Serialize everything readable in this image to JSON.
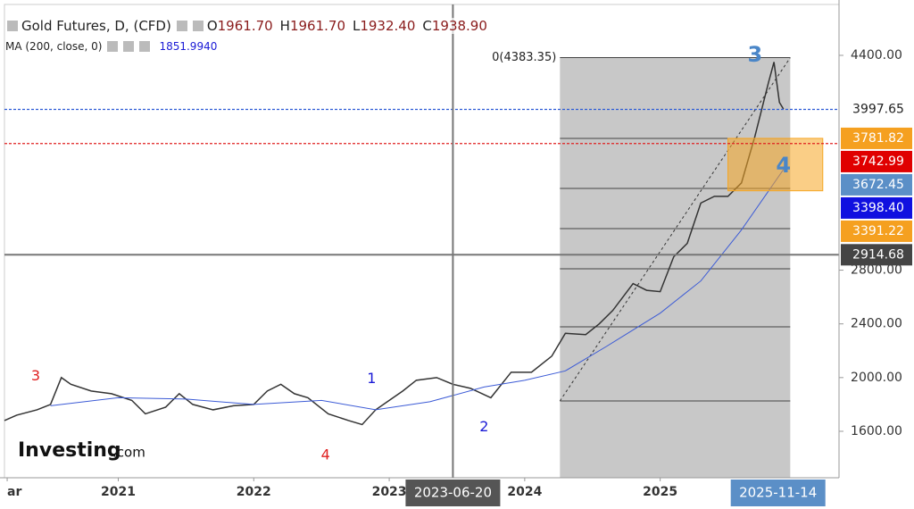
{
  "chart_data": {
    "type": "line",
    "title": "Gold Futures, D, (CFD)",
    "ohlc_names": [
      "O",
      "H",
      "L",
      "C"
    ],
    "ohlc_values": [
      1961.7,
      1961.7,
      1932.4,
      1938.9
    ],
    "ohlc_value_labels": [
      "1961.70",
      "1961.70",
      "1932.40",
      "1938.90"
    ],
    "ma_name": "MA (200, close, 0)",
    "ma_value": 1851.994,
    "ma_value_label": "1851.9940",
    "xlim": [
      2020.16,
      2026.32
    ],
    "ylim": [
      1254,
      4779
    ],
    "xticks": [
      {
        "value": 2020.18,
        "label": "ar"
      },
      2021,
      2022,
      2023,
      2024,
      2025
    ],
    "yticks": [
      {
        "value": 1600,
        "label": "1600.00"
      },
      {
        "value": 2000,
        "label": "2000.00"
      },
      {
        "value": 2400,
        "label": "2400.00"
      },
      {
        "value": 2800,
        "label": "2800.00"
      },
      {
        "value": 4400,
        "label": "4400.00"
      }
    ],
    "series": [
      {
        "color": "#333333",
        "x": [
          2020.16,
          2020.25,
          2020.4,
          2020.5,
          2020.58,
          2020.65,
          2020.8,
          2020.95,
          2021.1,
          2021.2,
          2021.35,
          2021.45,
          2021.55,
          2021.7,
          2021.85,
          2022.0,
          2022.1,
          2022.2,
          2022.3,
          2022.4,
          2022.55,
          2022.7,
          2022.8,
          2022.9,
          2023.0,
          2023.1,
          2023.2,
          2023.35,
          2023.47,
          2023.6,
          2023.75,
          2023.9,
          2024.05,
          2024.2,
          2024.3,
          2024.45,
          2024.55,
          2024.65,
          2024.8,
          2024.9,
          2025.0,
          2025.1,
          2025.2,
          2025.3,
          2025.4,
          2025.5,
          2025.6,
          2025.7,
          2025.8,
          2025.84,
          2025.88,
          2025.91
        ],
        "values": [
          1680,
          1720,
          1760,
          1800,
          2000,
          1950,
          1900,
          1880,
          1830,
          1730,
          1780,
          1880,
          1800,
          1760,
          1790,
          1800,
          1900,
          1950,
          1880,
          1850,
          1730,
          1680,
          1650,
          1760,
          1830,
          1900,
          1980,
          2000,
          1950,
          1920,
          1850,
          2040,
          2040,
          2160,
          2330,
          2320,
          2400,
          2500,
          2700,
          2650,
          2640,
          2900,
          3000,
          3300,
          3350,
          3350,
          3450,
          3800,
          4200,
          4350,
          4050,
          4000
        ]
      },
      {
        "color": "#3c5bd6",
        "x": [
          2020.5,
          2021.0,
          2021.5,
          2022.0,
          2022.5,
          2022.9,
          2023.3,
          2023.7,
          2024.0,
          2024.3,
          2024.6,
          2025.0,
          2025.3,
          2025.6,
          2025.91
        ],
        "values": [
          1790,
          1850,
          1840,
          1800,
          1830,
          1760,
          1820,
          1930,
          1980,
          2050,
          2230,
          2480,
          2720,
          3100,
          3550
        ]
      }
    ],
    "fib": {
      "x": [
        2024.26,
        2025.96
      ],
      "levels": [
        4383.35,
        3781,
        3409,
        3110,
        2810,
        2378,
        1826
      ],
      "label": "0(4383.35)"
    },
    "box": {
      "x": [
        2025.5,
        2026.2
      ],
      "y": [
        3781.82,
        3391.22
      ],
      "color": "#f5a623"
    },
    "hlines": [
      {
        "value": 3997.65,
        "color": "#2d5bd6",
        "style": "dotted"
      },
      {
        "value": 3742.99,
        "color": "#e02020",
        "style": "dotted"
      },
      {
        "value": 2914.68,
        "color": "#777777",
        "style": "solid"
      }
    ],
    "price_labels": {
      "values": [
        3997.65,
        3781.82,
        3742.99,
        3672.45,
        3398.4,
        3391.22,
        2914.68
      ],
      "value_labels": [
        "3997.65",
        "3781.82",
        "3742.99",
        "3672.45",
        "3398.40",
        "3391.22",
        "2914.68"
      ],
      "colors": [
        "#ffffff",
        "#f5a020",
        "#e00000",
        "#5b8fc7",
        "#1010e0",
        "#f5a020",
        "#444444"
      ],
      "text_colors": [
        "#222222",
        "#ffffff",
        "#ffffff",
        "#ffffff",
        "#ffffff",
        "#ffffff",
        "#ffffff"
      ]
    },
    "x_markers": [
      {
        "value": 2023.47,
        "label": "2023-06-20",
        "color": "#555555"
      },
      {
        "value": 2025.87,
        "label": "2025-11-14",
        "color": "#5b8fc7"
      }
    ],
    "annotations": [
      {
        "text": "3",
        "x": 2020.39,
        "y": 2008,
        "color": "#e02020",
        "size": 16
      },
      {
        "text": "4",
        "x": 2022.53,
        "y": 1420,
        "color": "#e02020",
        "size": 16
      },
      {
        "text": "1",
        "x": 2022.87,
        "y": 1990,
        "color": "#1a1ad6",
        "size": 16
      },
      {
        "text": "2",
        "x": 2023.7,
        "y": 1630,
        "color": "#1a1ad6",
        "size": 16
      },
      {
        "text": "3",
        "x": 2025.7,
        "y": 4400,
        "color": "#4a86c8",
        "size": 24
      },
      {
        "text": "4",
        "x": 2025.91,
        "y": 3575,
        "color": "#4a86c8",
        "size": 24
      }
    ],
    "watermark": [
      "Investing",
      ".com"
    ]
  }
}
